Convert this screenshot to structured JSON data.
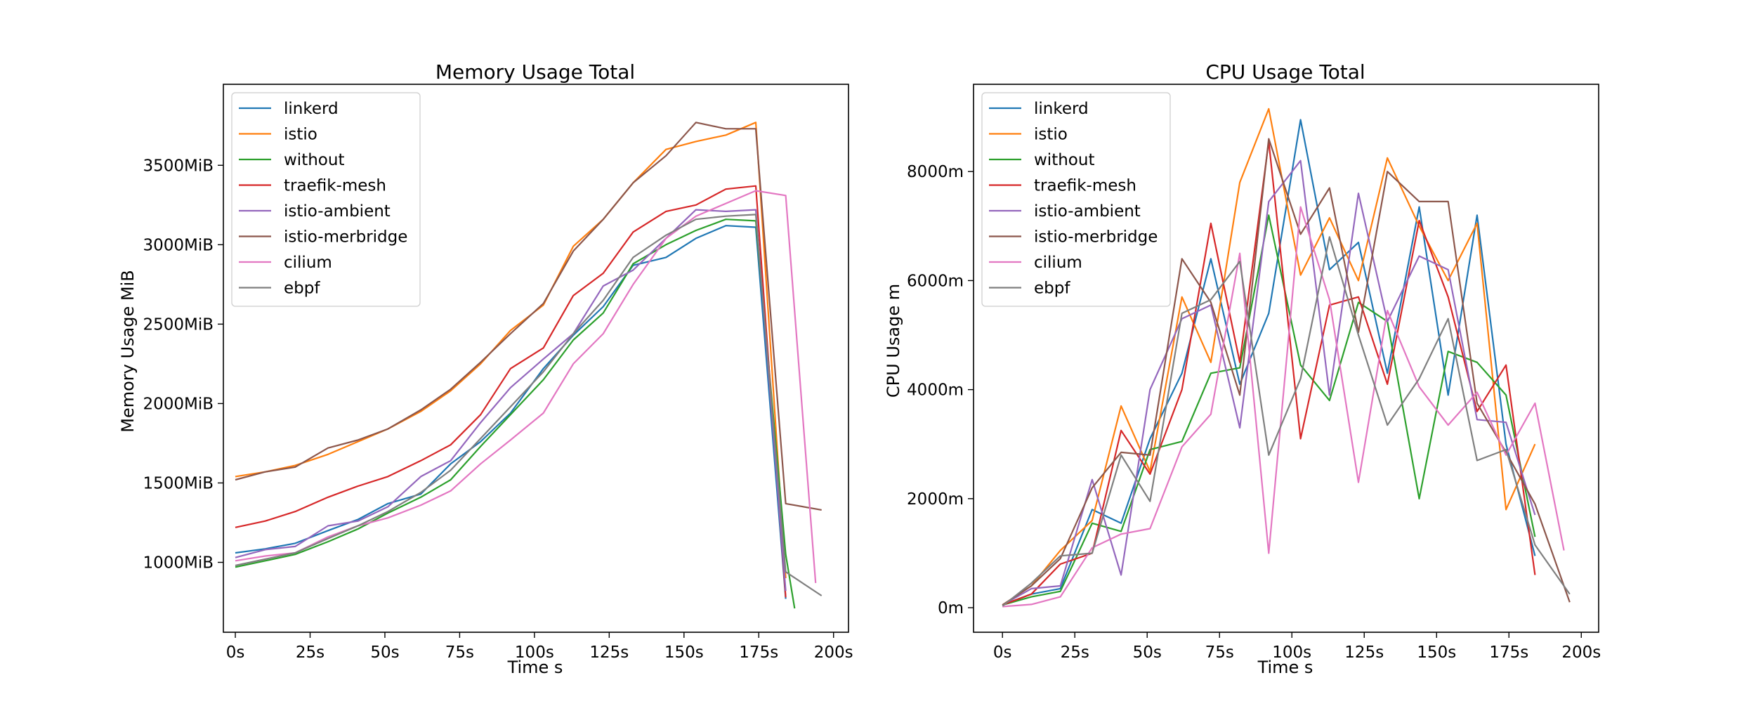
{
  "figure": {
    "series_colors": {
      "linkerd": "#1f77b4",
      "istio": "#ff7f0e",
      "without": "#2ca02c",
      "traefik-mesh": "#d62728",
      "istio-ambient": "#9467bd",
      "istio-merbridge": "#8c564b",
      "cilium": "#e377c2",
      "ebpf": "#7f7f7f"
    }
  },
  "chart_data": [
    {
      "type": "line",
      "title": "Memory Usage Total",
      "xlabel": "Time s",
      "ylabel": "Memory Usage MiB",
      "xlim": [
        -4,
        205
      ],
      "ylim": [
        560,
        4010
      ],
      "x_ticks": [
        0,
        25,
        50,
        75,
        100,
        125,
        150,
        175,
        200
      ],
      "x_tick_labels": [
        "0s",
        "25s",
        "50s",
        "75s",
        "100s",
        "125s",
        "150s",
        "175s",
        "200s"
      ],
      "y_ticks": [
        1000,
        1500,
        2000,
        2500,
        3000,
        3500
      ],
      "y_tick_labels": [
        "1000MiB",
        "1500MiB",
        "2000MiB",
        "2500MiB",
        "3000MiB",
        "3500MiB"
      ],
      "grid": false,
      "legend_position": "top-left",
      "series": [
        {
          "name": "linkerd",
          "x": [
            0,
            10,
            20,
            31,
            41,
            51,
            62,
            72,
            82,
            92,
            103,
            113,
            123,
            133,
            144,
            154,
            164,
            174,
            184
          ],
          "y": [
            1060,
            1085,
            1120,
            1200,
            1270,
            1370,
            1430,
            1620,
            1760,
            1940,
            2220,
            2430,
            2610,
            2870,
            2920,
            3040,
            3120,
            3110,
            770
          ]
        },
        {
          "name": "istio",
          "x": [
            0,
            10,
            20,
            31,
            41,
            51,
            62,
            72,
            82,
            92,
            103,
            113,
            123,
            133,
            144,
            154,
            164,
            174,
            184
          ],
          "y": [
            1540,
            1570,
            1610,
            1680,
            1760,
            1840,
            1950,
            2080,
            2250,
            2460,
            2620,
            2990,
            3160,
            3390,
            3600,
            3650,
            3690,
            3770,
            900
          ]
        },
        {
          "name": "without",
          "x": [
            0,
            10,
            20,
            31,
            41,
            51,
            62,
            72,
            82,
            92,
            103,
            113,
            123,
            133,
            144,
            154,
            164,
            174,
            184,
            187
          ],
          "y": [
            970,
            1010,
            1050,
            1130,
            1210,
            1310,
            1410,
            1520,
            1730,
            1930,
            2150,
            2400,
            2570,
            2880,
            3000,
            3090,
            3160,
            3150,
            1050,
            710
          ]
        },
        {
          "name": "traefik-mesh",
          "x": [
            0,
            10,
            20,
            31,
            41,
            51,
            62,
            72,
            82,
            92,
            103,
            113,
            123,
            133,
            144,
            154,
            164,
            174,
            184
          ],
          "y": [
            1220,
            1260,
            1320,
            1410,
            1480,
            1540,
            1640,
            1740,
            1930,
            2220,
            2350,
            2680,
            2820,
            3080,
            3210,
            3250,
            3350,
            3370,
            780
          ]
        },
        {
          "name": "istio-ambient",
          "x": [
            0,
            10,
            20,
            31,
            41,
            51,
            62,
            72,
            82,
            92,
            103,
            113,
            123,
            133,
            144,
            154,
            164,
            174,
            184
          ],
          "y": [
            1030,
            1080,
            1100,
            1230,
            1260,
            1350,
            1540,
            1640,
            1880,
            2100,
            2280,
            2440,
            2740,
            2840,
            3040,
            3220,
            3210,
            3220,
            820
          ]
        },
        {
          "name": "istio-merbridge",
          "x": [
            0,
            10,
            20,
            31,
            41,
            51,
            62,
            72,
            82,
            92,
            103,
            113,
            123,
            133,
            144,
            154,
            164,
            174,
            184,
            196
          ],
          "y": [
            1520,
            1570,
            1600,
            1720,
            1770,
            1840,
            1960,
            2090,
            2260,
            2440,
            2630,
            2960,
            3160,
            3390,
            3560,
            3770,
            3730,
            3730,
            1370,
            1330
          ]
        },
        {
          "name": "cilium",
          "x": [
            0,
            10,
            20,
            31,
            41,
            51,
            62,
            72,
            82,
            92,
            103,
            113,
            123,
            133,
            144,
            154,
            164,
            174,
            184,
            194
          ],
          "y": [
            1010,
            1040,
            1060,
            1160,
            1230,
            1280,
            1360,
            1450,
            1620,
            1770,
            1940,
            2250,
            2440,
            2750,
            3040,
            3180,
            3260,
            3340,
            3310,
            870
          ]
        },
        {
          "name": "ebpf",
          "x": [
            0,
            10,
            20,
            31,
            41,
            51,
            62,
            72,
            82,
            92,
            103,
            113,
            123,
            133,
            144,
            154,
            164,
            174,
            184,
            196
          ],
          "y": [
            980,
            1020,
            1060,
            1150,
            1230,
            1320,
            1440,
            1580,
            1780,
            1980,
            2200,
            2440,
            2650,
            2920,
            3060,
            3160,
            3180,
            3190,
            940,
            790
          ]
        }
      ]
    },
    {
      "type": "line",
      "title": "CPU Usage Total",
      "xlabel": "Time s",
      "ylabel": "CPU Usage m",
      "xlim": [
        -10,
        206
      ],
      "ylim": [
        -450,
        9600
      ],
      "x_ticks": [
        0,
        25,
        50,
        75,
        100,
        125,
        150,
        175,
        200
      ],
      "x_tick_labels": [
        "0s",
        "25s",
        "50s",
        "75s",
        "100s",
        "125s",
        "150s",
        "175s",
        "200s"
      ],
      "y_ticks": [
        0,
        2000,
        4000,
        6000,
        8000
      ],
      "y_tick_labels": [
        "0m",
        "2000m",
        "4000m",
        "6000m",
        "8000m"
      ],
      "grid": false,
      "legend_position": "top-left",
      "series": [
        {
          "name": "linkerd",
          "x": [
            0,
            10,
            20,
            31,
            41,
            51,
            62,
            72,
            82,
            92,
            103,
            113,
            123,
            133,
            144,
            154,
            164,
            174,
            184
          ],
          "y": [
            50,
            250,
            350,
            1800,
            1550,
            3100,
            4300,
            6400,
            4100,
            5400,
            8950,
            6200,
            6700,
            4300,
            7350,
            3900,
            7200,
            3000,
            950
          ]
        },
        {
          "name": "istio",
          "x": [
            0,
            10,
            20,
            31,
            41,
            51,
            62,
            72,
            82,
            92,
            103,
            113,
            123,
            133,
            144,
            154,
            164,
            174,
            184
          ],
          "y": [
            50,
            400,
            1050,
            1600,
            3700,
            2500,
            5700,
            4500,
            7800,
            9150,
            6100,
            7150,
            6000,
            8250,
            7000,
            6000,
            7050,
            1800,
            3000
          ]
        },
        {
          "name": "without",
          "x": [
            0,
            10,
            20,
            31,
            41,
            51,
            62,
            72,
            82,
            92,
            103,
            113,
            123,
            133,
            144,
            154,
            164,
            174,
            184
          ],
          "y": [
            50,
            200,
            300,
            1550,
            1400,
            2900,
            3050,
            4300,
            4400,
            7200,
            4450,
            3800,
            5600,
            5250,
            2000,
            4700,
            4500,
            3900,
            1300
          ]
        },
        {
          "name": "traefik-mesh",
          "x": [
            0,
            10,
            20,
            31,
            41,
            51,
            62,
            72,
            82,
            92,
            103,
            113,
            123,
            133,
            144,
            154,
            164,
            174,
            184
          ],
          "y": [
            50,
            250,
            800,
            1000,
            3250,
            2450,
            4000,
            7050,
            4500,
            8550,
            3100,
            5550,
            5700,
            4100,
            7100,
            5700,
            3600,
            4450,
            600
          ]
        },
        {
          "name": "istio-ambient",
          "x": [
            0,
            10,
            20,
            31,
            41,
            51,
            62,
            72,
            82,
            92,
            103,
            113,
            123,
            133,
            144,
            154,
            164,
            174,
            184
          ],
          "y": [
            50,
            350,
            400,
            2350,
            600,
            4000,
            5300,
            5550,
            3300,
            7450,
            8200,
            3900,
            7600,
            5250,
            6450,
            6200,
            3450,
            3400,
            1700
          ]
        },
        {
          "name": "istio-merbridge",
          "x": [
            0,
            10,
            20,
            31,
            41,
            51,
            62,
            72,
            82,
            92,
            103,
            113,
            123,
            133,
            144,
            154,
            164,
            174,
            184,
            196
          ],
          "y": [
            50,
            400,
            900,
            2200,
            2850,
            2800,
            6400,
            5600,
            3900,
            8600,
            6850,
            7700,
            5050,
            8000,
            7450,
            7450,
            3750,
            2850,
            1900,
            100
          ]
        },
        {
          "name": "cilium",
          "x": [
            0,
            10,
            20,
            31,
            41,
            51,
            62,
            72,
            82,
            92,
            103,
            113,
            123,
            133,
            144,
            154,
            164,
            174,
            184,
            194
          ],
          "y": [
            20,
            60,
            200,
            1100,
            1350,
            1450,
            2950,
            3550,
            6500,
            1000,
            7350,
            5650,
            2300,
            5450,
            4050,
            3350,
            3950,
            2800,
            3750,
            1050
          ]
        },
        {
          "name": "ebpf",
          "x": [
            0,
            10,
            20,
            31,
            41,
            51,
            62,
            72,
            82,
            92,
            103,
            113,
            123,
            133,
            144,
            154,
            164,
            174,
            184,
            196
          ],
          "y": [
            30,
            450,
            950,
            1000,
            2800,
            1950,
            5400,
            5650,
            6350,
            2800,
            4200,
            6800,
            5000,
            3350,
            4200,
            5300,
            2700,
            2900,
            1150,
            250
          ]
        }
      ]
    }
  ]
}
